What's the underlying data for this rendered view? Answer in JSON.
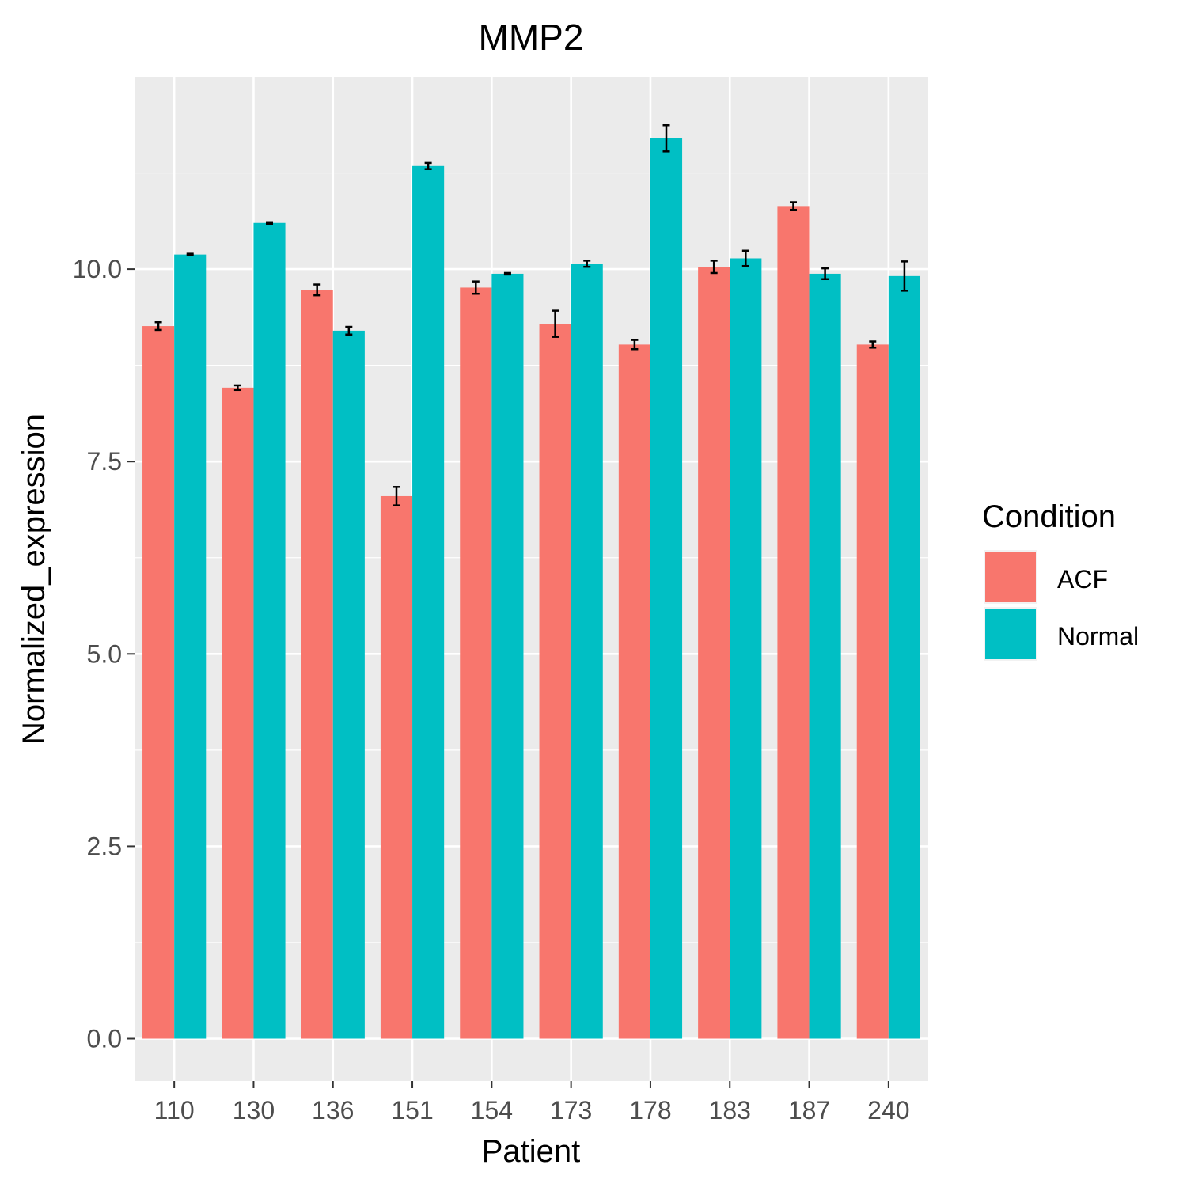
{
  "chart_data": {
    "type": "bar",
    "title": "MMP2",
    "xlabel": "Patient",
    "ylabel": "Normalized_expression",
    "categories": [
      "110",
      "130",
      "136",
      "151",
      "154",
      "173",
      "178",
      "183",
      "187",
      "240"
    ],
    "series": [
      {
        "name": "ACF",
        "color": "#F8766D",
        "values": [
          9.26,
          8.46,
          9.73,
          7.05,
          9.76,
          9.29,
          9.02,
          10.03,
          10.82,
          9.02
        ],
        "errors": [
          0.05,
          0.03,
          0.07,
          0.12,
          0.08,
          0.17,
          0.06,
          0.08,
          0.05,
          0.04
        ]
      },
      {
        "name": "Normal",
        "color": "#00BFC4",
        "values": [
          10.19,
          10.6,
          9.2,
          11.34,
          9.94,
          10.07,
          11.7,
          10.14,
          9.94,
          9.91
        ],
        "errors": [
          0.01,
          0.01,
          0.05,
          0.04,
          0.01,
          0.04,
          0.17,
          0.1,
          0.07,
          0.19
        ]
      }
    ],
    "yticks": [
      "0.0",
      "2.5",
      "5.0",
      "7.5",
      "10.0"
    ],
    "ylim": [
      -0.55,
      12.5
    ],
    "grid": true,
    "error_bars": true,
    "legend": {
      "title": "Condition",
      "position": "right"
    },
    "colors": {
      "panel": "#EBEBEB",
      "grid": "#FFFFFF",
      "error_bar": "#000000"
    }
  }
}
